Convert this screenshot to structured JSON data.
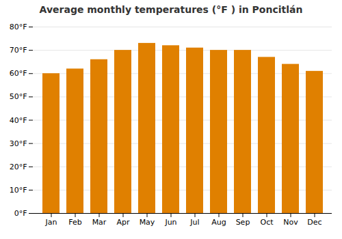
{
  "chart_data": {
    "type": "bar",
    "title": "Average monthly temperatures (°F ) in Poncitlán",
    "categories": [
      "Jan",
      "Feb",
      "Mar",
      "Apr",
      "May",
      "Jun",
      "Jul",
      "Aug",
      "Sep",
      "Oct",
      "Nov",
      "Dec"
    ],
    "values": [
      60,
      62,
      66,
      70,
      73,
      72,
      71,
      70,
      70,
      67,
      64,
      61
    ],
    "color": "#E08000",
    "ylim": [
      0,
      80
    ],
    "yticks": [
      {
        "value": 0,
        "label": "0°F"
      },
      {
        "value": 10,
        "label": "10°F"
      },
      {
        "value": 20,
        "label": "20°F"
      },
      {
        "value": 30,
        "label": "30°F"
      },
      {
        "value": 40,
        "label": "40°F"
      },
      {
        "value": 50,
        "label": "50°F"
      },
      {
        "value": 60,
        "label": "60°F"
      },
      {
        "value": 70,
        "label": "70°F"
      },
      {
        "value": 80,
        "label": "80°F"
      }
    ],
    "grid": true
  }
}
